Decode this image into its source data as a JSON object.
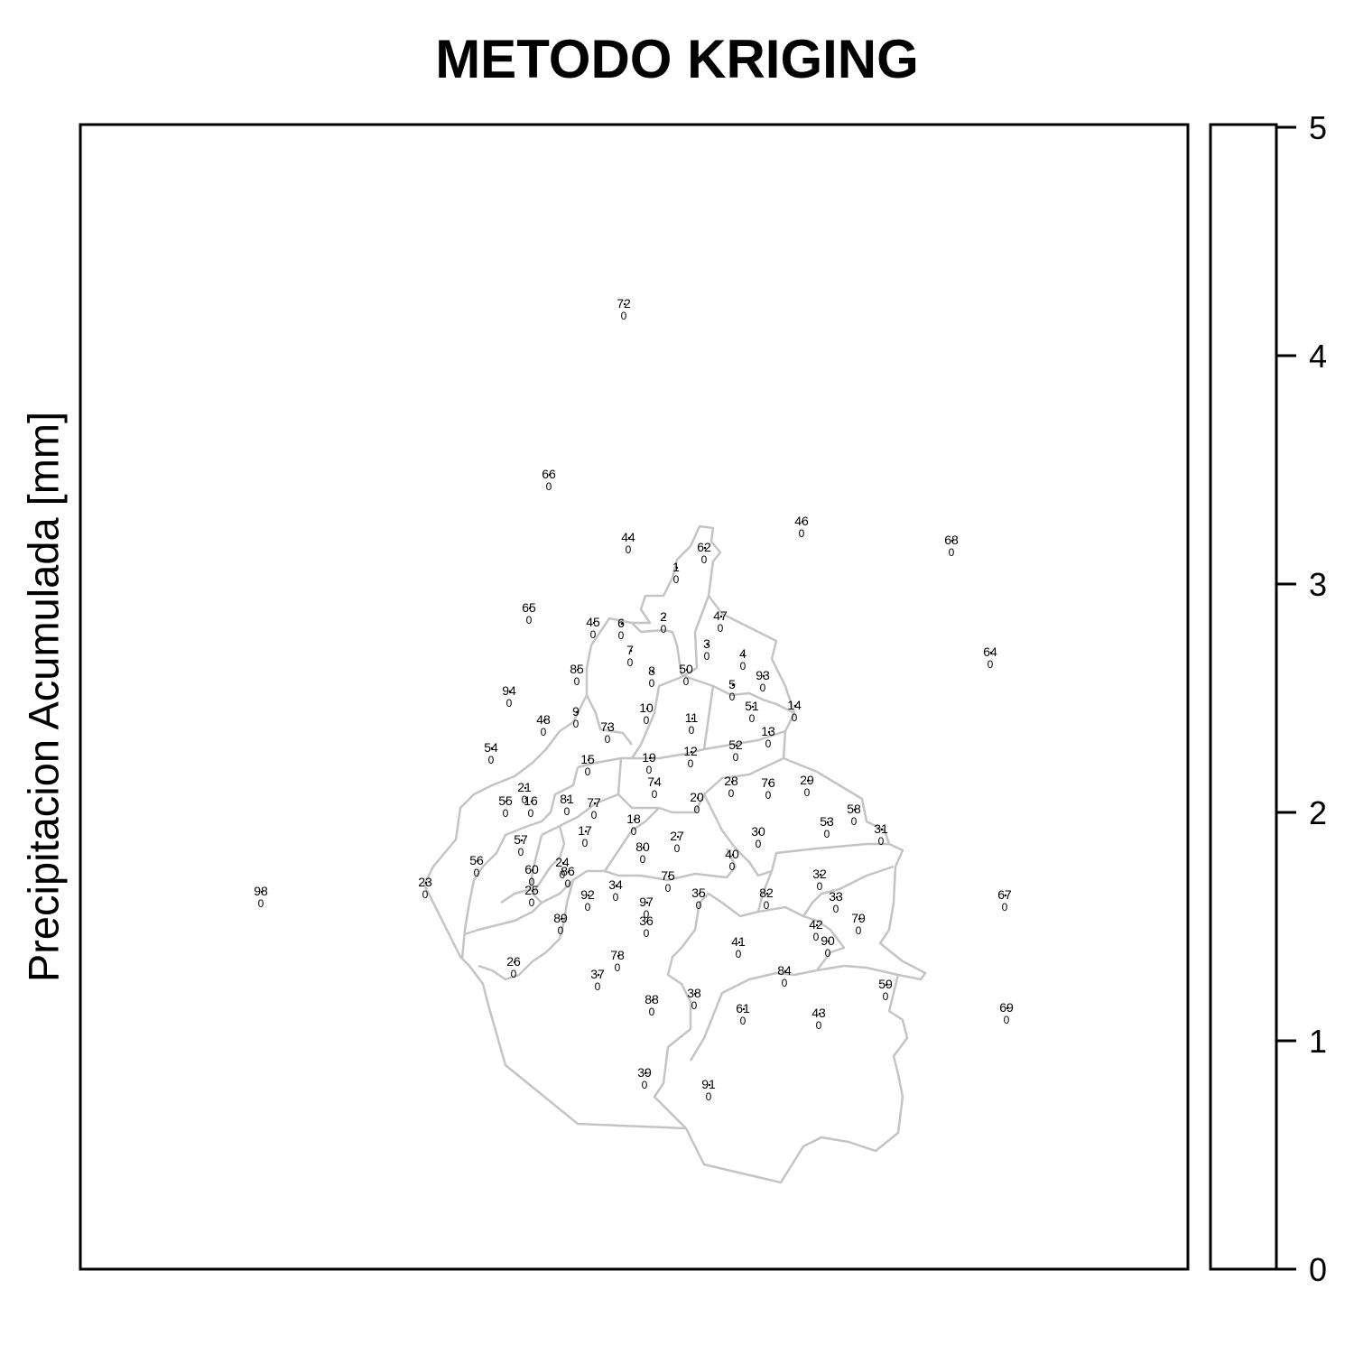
{
  "title": "METODO KRIGING",
  "legend": {
    "label": "Precipitacion Acumulada [mm]",
    "ticks": [
      0,
      1,
      2,
      3,
      4,
      5
    ],
    "range": [
      0,
      5
    ],
    "fill_color": "#ffffff"
  },
  "colors": {
    "boundary": "#c4c4c4",
    "frame": "#000000"
  },
  "chart_data": {
    "type": "map",
    "title": "METODO KRIGING",
    "colorbar_label": "Precipitacion Acumulada [mm]",
    "colorbar_ticks": [
      0,
      1,
      2,
      3,
      4,
      5
    ],
    "stations": [
      {
        "id": "72",
        "value": 0
      },
      {
        "id": "66",
        "value": 0
      },
      {
        "id": "44",
        "value": 0
      },
      {
        "id": "62",
        "value": 0
      },
      {
        "id": "46",
        "value": 0
      },
      {
        "id": "68",
        "value": 0
      },
      {
        "id": "1",
        "value": 0
      },
      {
        "id": "65",
        "value": 0
      },
      {
        "id": "45",
        "value": 0
      },
      {
        "id": "6",
        "value": 0
      },
      {
        "id": "2",
        "value": 0
      },
      {
        "id": "47",
        "value": 0
      },
      {
        "id": "64",
        "value": 0
      },
      {
        "id": "3",
        "value": 0
      },
      {
        "id": "7",
        "value": 0
      },
      {
        "id": "4",
        "value": 0
      },
      {
        "id": "85",
        "value": 0
      },
      {
        "id": "8",
        "value": 0
      },
      {
        "id": "50",
        "value": 0
      },
      {
        "id": "93",
        "value": 0
      },
      {
        "id": "94",
        "value": 0
      },
      {
        "id": "5",
        "value": 0
      },
      {
        "id": "51",
        "value": 0
      },
      {
        "id": "14",
        "value": 0
      },
      {
        "id": "10",
        "value": 0
      },
      {
        "id": "9",
        "value": 0
      },
      {
        "id": "48",
        "value": 0
      },
      {
        "id": "11",
        "value": 0
      },
      {
        "id": "73",
        "value": 0
      },
      {
        "id": "13",
        "value": 0
      },
      {
        "id": "54",
        "value": 0
      },
      {
        "id": "52",
        "value": 0
      },
      {
        "id": "12",
        "value": 0
      },
      {
        "id": "15",
        "value": 0
      },
      {
        "id": "19",
        "value": 0
      },
      {
        "id": "74",
        "value": 0
      },
      {
        "id": "28",
        "value": 0
      },
      {
        "id": "76",
        "value": 0
      },
      {
        "id": "29",
        "value": 0
      },
      {
        "id": "21",
        "value": 0
      },
      {
        "id": "55",
        "value": 0
      },
      {
        "id": "16",
        "value": 0
      },
      {
        "id": "81",
        "value": 0
      },
      {
        "id": "77",
        "value": 0
      },
      {
        "id": "20",
        "value": 0
      },
      {
        "id": "58",
        "value": 0
      },
      {
        "id": "18",
        "value": 0
      },
      {
        "id": "53",
        "value": 0
      },
      {
        "id": "17",
        "value": 0
      },
      {
        "id": "31",
        "value": 0
      },
      {
        "id": "57",
        "value": 0
      },
      {
        "id": "30",
        "value": 0
      },
      {
        "id": "27",
        "value": 0
      },
      {
        "id": "80",
        "value": 0
      },
      {
        "id": "40",
        "value": 0
      },
      {
        "id": "56",
        "value": 0
      },
      {
        "id": "24",
        "value": 0
      },
      {
        "id": "60",
        "value": 0
      },
      {
        "id": "86",
        "value": 0
      },
      {
        "id": "32",
        "value": 0
      },
      {
        "id": "75",
        "value": 0
      },
      {
        "id": "23",
        "value": 0
      },
      {
        "id": "34",
        "value": 0
      },
      {
        "id": "98",
        "value": 0
      },
      {
        "id": "25",
        "value": 0
      },
      {
        "id": "92",
        "value": 0
      },
      {
        "id": "35",
        "value": 0
      },
      {
        "id": "82",
        "value": 0
      },
      {
        "id": "33",
        "value": 0
      },
      {
        "id": "67",
        "value": 0
      },
      {
        "id": "97",
        "value": 0
      },
      {
        "id": "89",
        "value": 0
      },
      {
        "id": "36",
        "value": 0
      },
      {
        "id": "42",
        "value": 0
      },
      {
        "id": "79",
        "value": 0
      },
      {
        "id": "90",
        "value": 0
      },
      {
        "id": "41",
        "value": 0
      },
      {
        "id": "78",
        "value": 0
      },
      {
        "id": "26",
        "value": 0
      },
      {
        "id": "37",
        "value": 0
      },
      {
        "id": "84",
        "value": 0
      },
      {
        "id": "59",
        "value": 0
      },
      {
        "id": "88",
        "value": 0
      },
      {
        "id": "38",
        "value": 0
      },
      {
        "id": "61",
        "value": 0
      },
      {
        "id": "43",
        "value": 0
      },
      {
        "id": "69",
        "value": 0
      },
      {
        "id": "39",
        "value": 0
      },
      {
        "id": "91",
        "value": 0
      }
    ]
  }
}
